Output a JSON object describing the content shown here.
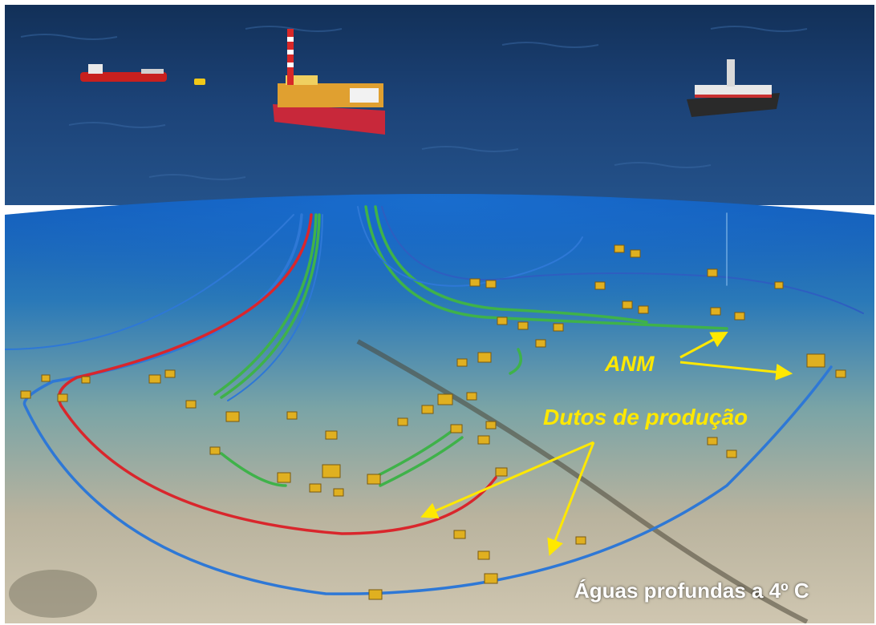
{
  "labels": {
    "anm": "ANM",
    "dutos": "Dutos de produção",
    "caption": "Águas profundas a 4º C"
  },
  "colors": {
    "annotation": "#ffe800",
    "caption": "#ffffff",
    "sea_surface": "#1b3f73",
    "underwater": "#1565b8",
    "seabed": "#c9bfa8",
    "riser_blue": "#2e78d6",
    "riser_red": "#d9262c",
    "riser_green": "#3fb24a",
    "equipment": "#e0b020"
  },
  "objects": [
    "supply-vessel",
    "buoy",
    "fpso-platform",
    "drillship",
    "subsea-equipment"
  ]
}
